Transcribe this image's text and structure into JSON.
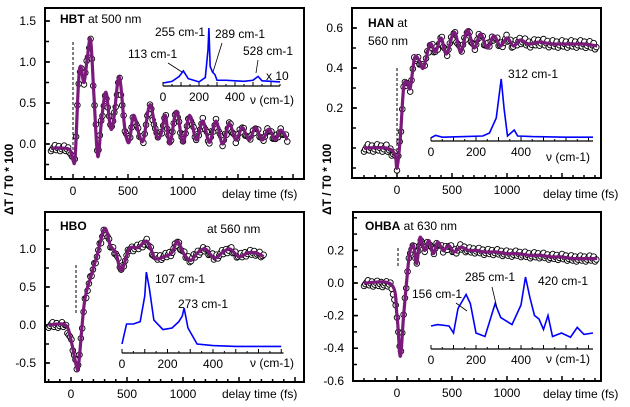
{
  "ylabel": "ΔT / T0 * 100",
  "chart_data": [
    {
      "type": "line",
      "title_bold": "HBT",
      "title_rest": " at 500 nm",
      "xlabel": "delay time (fs)",
      "xticks": [
        0,
        500,
        1000
      ],
      "yticks": [
        "0.0",
        "0.5",
        "1.0",
        "1.5"
      ],
      "ylim": [
        -0.43,
        1.66
      ],
      "xlim": [
        -250,
        2100
      ],
      "series": [
        {
          "x": [
            -200,
            -100,
            -30,
            0,
            20,
            50,
            70,
            100,
            130,
            160,
            190,
            225,
            260,
            300,
            340,
            370,
            420,
            470,
            510,
            550,
            600,
            640,
            700,
            760,
            800,
            840,
            880,
            940,
            1000,
            1060,
            1120,
            1180,
            1240,
            1300,
            1360,
            1420,
            1480,
            1540,
            1600,
            1660,
            1720,
            1780,
            1840,
            1890,
            1950
          ],
          "y": [
            -0.05,
            -0.05,
            -0.07,
            -0.2,
            -0.15,
            0.75,
            0.95,
            0.75,
            1.05,
            1.27,
            0.6,
            -0.15,
            0.3,
            0.63,
            0.2,
            0.3,
            0.82,
            0.2,
            0.02,
            0.35,
            0.12,
            0.05,
            0.48,
            0.1,
            0.12,
            0.35,
            0.0,
            0.4,
            0.02,
            0.35,
            0.05,
            0.28,
            0.02,
            0.28,
            0.0,
            0.25,
            0.05,
            0.2,
            0.05,
            0.2,
            0.05,
            0.18,
            0.05,
            0.17,
            0.05
          ]
        }
      ],
      "inset": {
        "xlabel": "ν (cm-1)",
        "xticks": [
          0,
          200,
          400
        ],
        "xlim": [
          0,
          650
        ],
        "scale_note": "x 10",
        "x": [
          0,
          50,
          90,
          113,
          140,
          200,
          235,
          250,
          255,
          262,
          275,
          289,
          300,
          350,
          400,
          450,
          500,
          528,
          550,
          600,
          650
        ],
        "y": [
          0,
          0.03,
          0.12,
          0.22,
          0.08,
          0.02,
          0.1,
          0.6,
          1.0,
          0.3,
          0.2,
          0.15,
          0.05,
          0.05,
          0.04,
          0.03,
          0.05,
          0.12,
          0.04,
          0.03,
          0.02
        ],
        "peaks": [
          "113 cm-1",
          "255 cm-1",
          "289 cm-1",
          "528 cm-1"
        ]
      }
    },
    {
      "type": "line",
      "title_bold": "HAN",
      "title_rest": " at",
      "title_line2": "560 nm",
      "xlabel": "delay time (fs)",
      "xticks": [
        0,
        500,
        1000
      ],
      "yticks": [
        "0.2",
        "0.4",
        "0.6"
      ],
      "ylim": [
        -0.15,
        0.7
      ],
      "xlim": [
        -400,
        1850
      ],
      "series": [
        {
          "x": [
            -300,
            -100,
            -20,
            0,
            30,
            60,
            90,
            120,
            160,
            200,
            240,
            300,
            350,
            400,
            450,
            520,
            580,
            640,
            700,
            760,
            820,
            880,
            940,
            1000,
            1060,
            1120,
            1200,
            1300,
            1400,
            1500,
            1600,
            1700,
            1820
          ],
          "y": [
            0,
            0,
            -0.03,
            -0.1,
            0.05,
            0.3,
            0.33,
            0.3,
            0.45,
            0.44,
            0.4,
            0.52,
            0.48,
            0.55,
            0.47,
            0.58,
            0.48,
            0.59,
            0.5,
            0.57,
            0.5,
            0.56,
            0.51,
            0.55,
            0.51,
            0.54,
            0.52,
            0.53,
            0.52,
            0.52,
            0.52,
            0.52,
            0.51
          ]
        }
      ],
      "inset": {
        "xlabel": "ν (cm-1)",
        "xticks": [
          0,
          200,
          400
        ],
        "xlim": [
          0,
          720
        ],
        "x": [
          0,
          20,
          50,
          150,
          230,
          260,
          290,
          312,
          325,
          340,
          370,
          385,
          450,
          600,
          720
        ],
        "y": [
          0.02,
          0.06,
          0.03,
          0.04,
          0.05,
          0.1,
          0.35,
          1.0,
          0.5,
          0.05,
          0.15,
          0.05,
          0.04,
          0.03,
          0.03
        ],
        "peaks": [
          "312 cm-1"
        ]
      }
    },
    {
      "type": "line",
      "title_bold": "HBO",
      "title_rest": "at 560 nm",
      "xlabel": "delay time (fs)",
      "xticks": [
        0,
        500,
        1000
      ],
      "yticks": [
        "-0.5",
        "0.0",
        "0.5",
        "1.0"
      ],
      "ylim": [
        -0.75,
        1.5
      ],
      "xlim": [
        -230,
        2070
      ],
      "series": [
        {
          "x": [
            -200,
            -50,
            0,
            50,
            70,
            120,
            180,
            230,
            300,
            350,
            400,
            450,
            520,
            600,
            680,
            750,
            830,
            900,
            950,
            1010,
            1070,
            1130,
            1200,
            1280,
            1350,
            1420,
            1500,
            1580,
            1650,
            1720
          ],
          "y": [
            0,
            0,
            -0.2,
            -0.55,
            -0.5,
            0.3,
            0.65,
            0.9,
            1.27,
            1.05,
            0.95,
            0.72,
            1.0,
            1.02,
            1.1,
            0.88,
            0.9,
            0.95,
            1.1,
            0.93,
            0.85,
            0.95,
            1.0,
            0.88,
            0.95,
            1.0,
            0.9,
            0.95,
            0.95,
            0.9
          ]
        }
      ],
      "inset": {
        "xlabel": "ν (cm-1)",
        "xticks": [
          0,
          200,
          400
        ],
        "xlim": [
          0,
          710
        ],
        "x": [
          0,
          20,
          50,
          80,
          100,
          107,
          120,
          140,
          180,
          220,
          250,
          265,
          273,
          290,
          330,
          400,
          500,
          600,
          700
        ],
        "y": [
          0.1,
          0.35,
          0.35,
          0.38,
          0.7,
          1.0,
          0.8,
          0.4,
          0.28,
          0.3,
          0.38,
          0.45,
          0.55,
          0.3,
          0.1,
          0.08,
          0.07,
          0.07,
          0.07
        ],
        "peaks": [
          "107 cm-1",
          "273 cm-1"
        ]
      }
    },
    {
      "type": "line",
      "title_bold": "OHBA",
      "title_rest": " at 630 nm",
      "xlabel": "delay time (fs)",
      "xticks": [
        0,
        500,
        1000
      ],
      "yticks": [
        "-0.6",
        "-0.4",
        "-0.2",
        "0.0",
        "0.2"
      ],
      "ylim": [
        -0.6,
        0.4
      ],
      "xlim": [
        -400,
        1850
      ],
      "series": [
        {
          "x": [
            -300,
            -50,
            0,
            30,
            60,
            100,
            120,
            150,
            180,
            210,
            250,
            290,
            330,
            370,
            420,
            470,
            520,
            580,
            650,
            720,
            800,
            900,
            1000,
            1100,
            1200,
            1300,
            1400,
            1500,
            1600,
            1820
          ],
          "y": [
            0,
            -0.01,
            -0.2,
            -0.45,
            -0.2,
            0.1,
            0.2,
            0.23,
            0.12,
            0.28,
            0.2,
            0.26,
            0.18,
            0.25,
            0.2,
            0.23,
            0.19,
            0.22,
            0.2,
            0.2,
            0.19,
            0.19,
            0.18,
            0.18,
            0.17,
            0.17,
            0.16,
            0.16,
            0.15,
            0.15
          ]
        }
      ],
      "inset": {
        "xlabel": "ν (cm-1)",
        "xticks": [
          0,
          200,
          400
        ],
        "xlim": [
          0,
          720
        ],
        "x": [
          0,
          30,
          80,
          100,
          120,
          156,
          175,
          200,
          240,
          285,
          310,
          360,
          400,
          420,
          440,
          460,
          480,
          500,
          520,
          540,
          580,
          620,
          650,
          680,
          720
        ],
        "y": [
          0.3,
          0.32,
          0.3,
          0.2,
          0.55,
          0.75,
          0.62,
          0.2,
          0.15,
          0.62,
          0.42,
          0.32,
          0.6,
          1.0,
          0.7,
          0.45,
          0.4,
          0.25,
          0.45,
          0.15,
          0.2,
          0.14,
          0.28,
          0.18,
          0.2
        ],
        "peaks": [
          "156 cm-1",
          "285 cm-1",
          "420 cm-1"
        ]
      }
    }
  ],
  "colors": {
    "fit": "#7b1a7b",
    "spectrum": "#0000ff",
    "markers": "#000000"
  }
}
